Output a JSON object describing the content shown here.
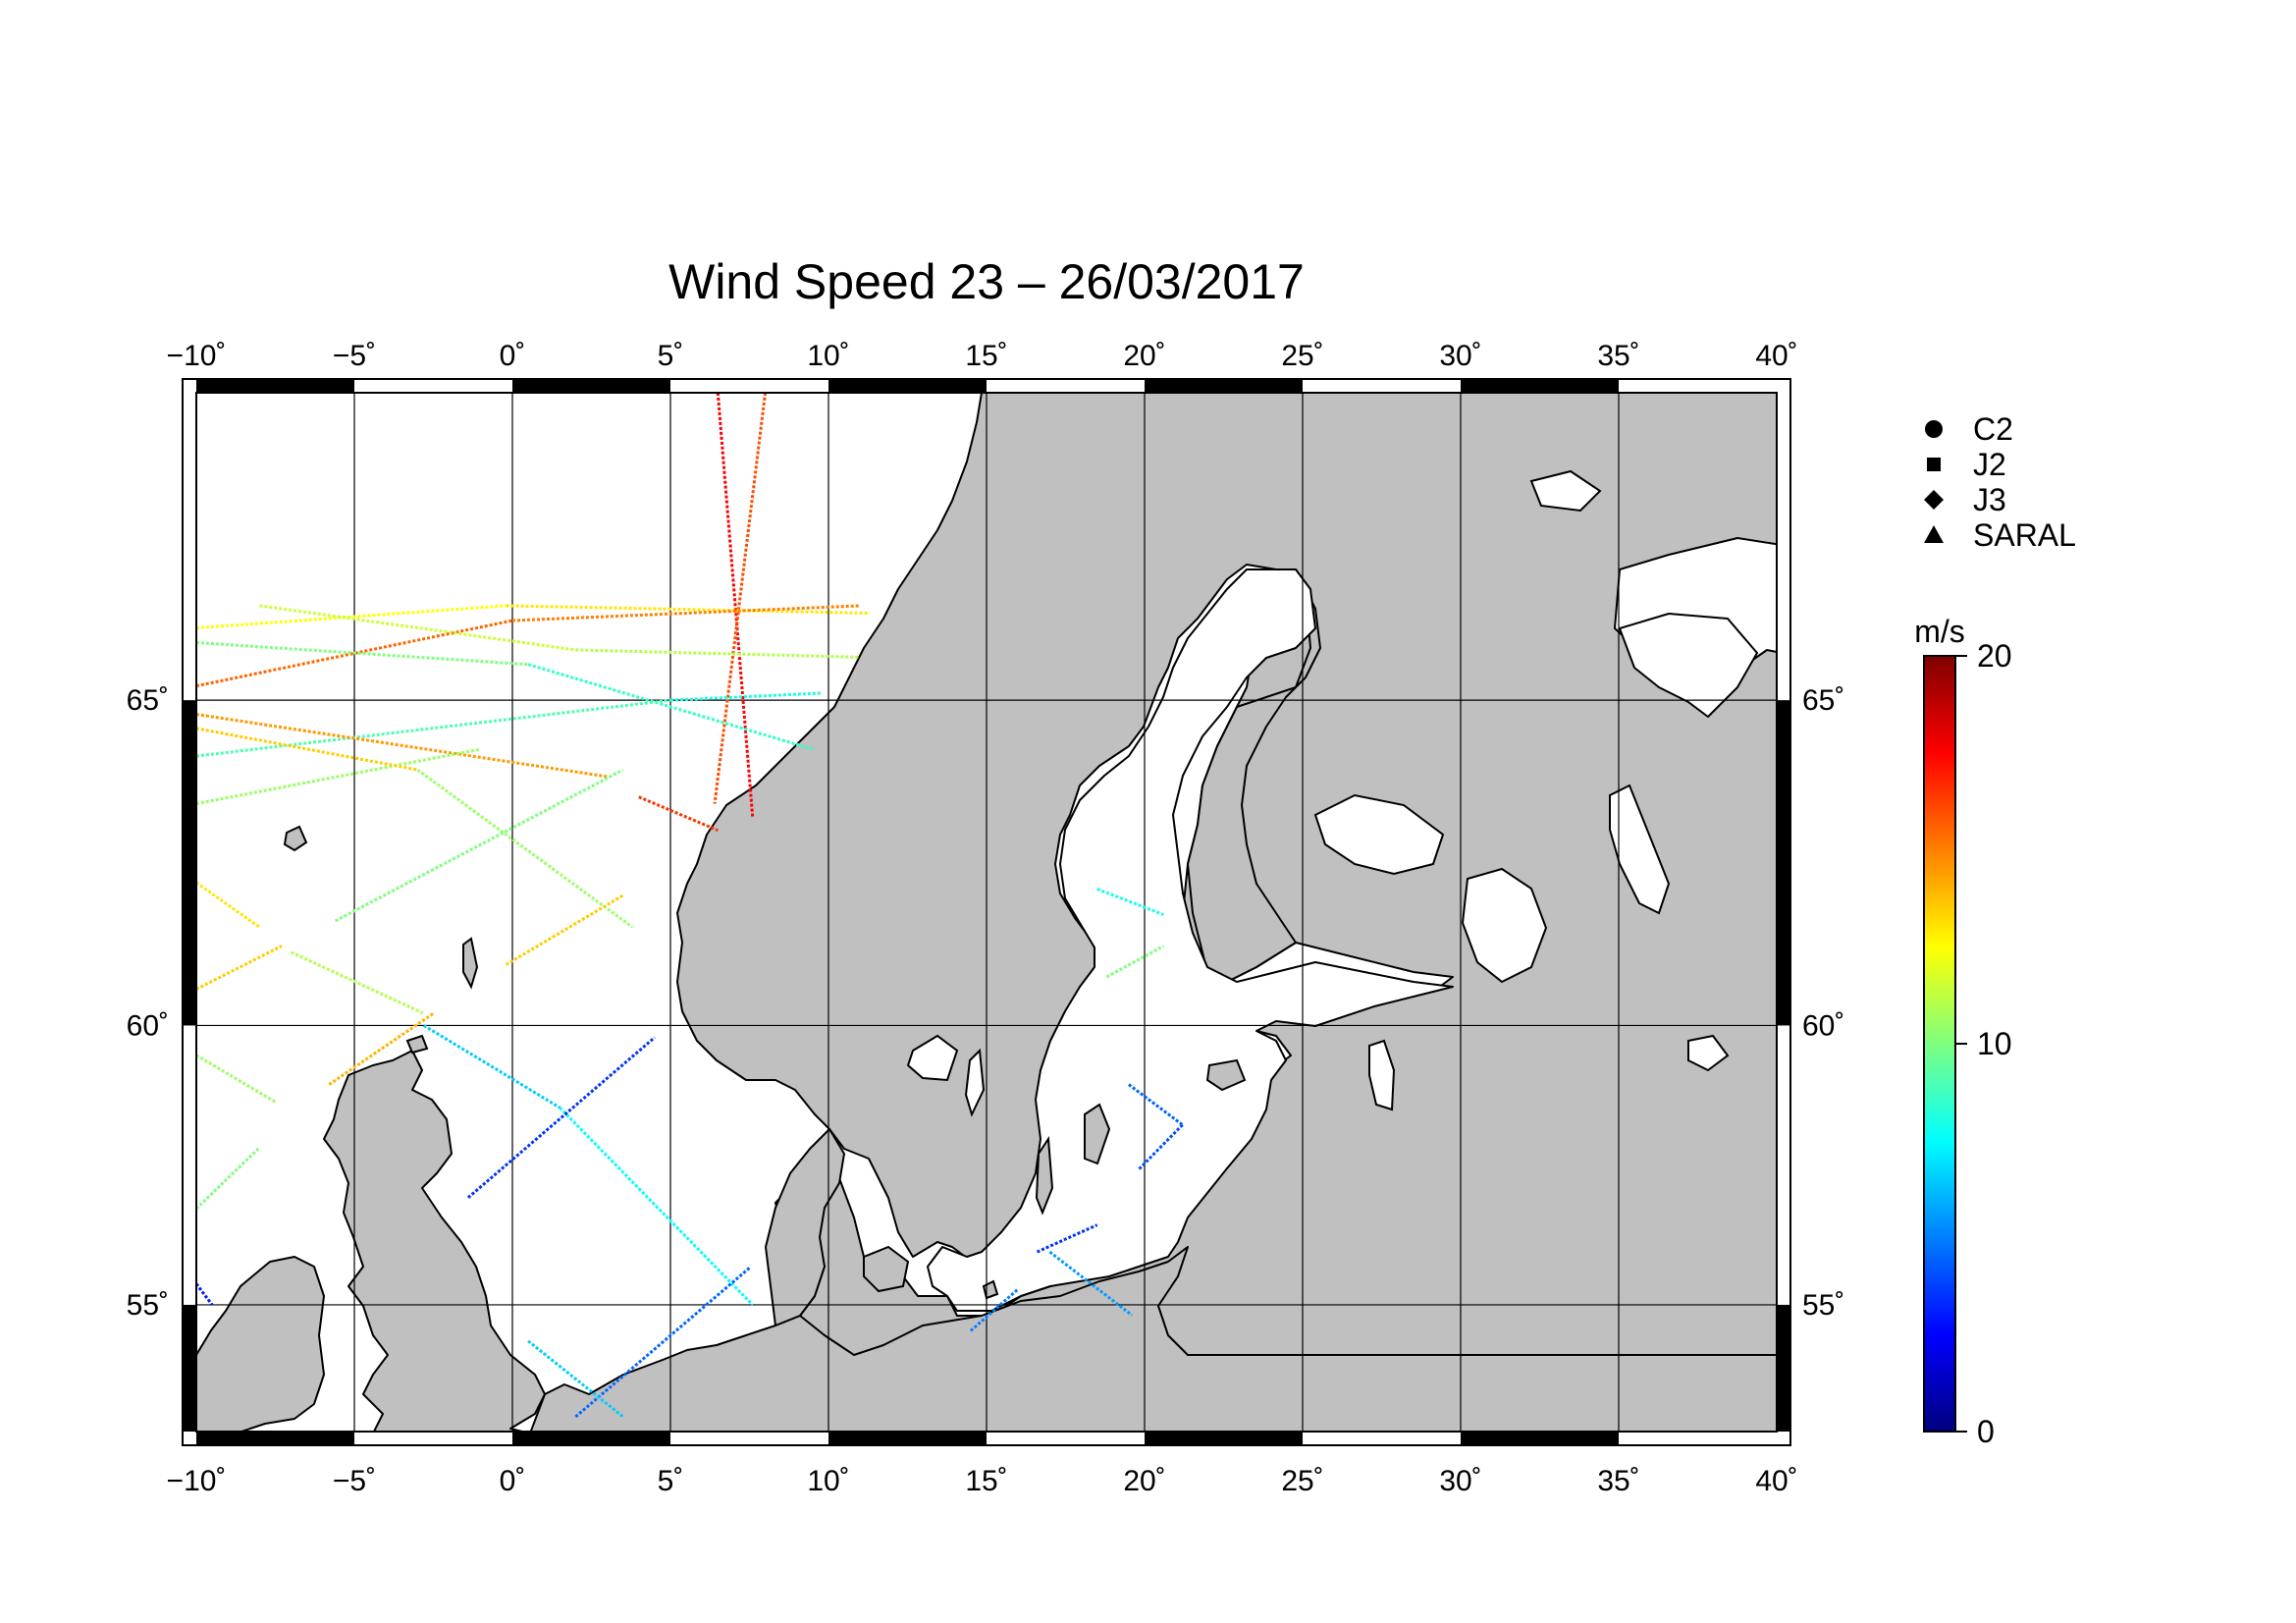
{
  "title": "Wind Speed 23 – 26/03/2017",
  "map": {
    "lon_ticks": [
      {
        "value": -10,
        "label": "−10˚"
      },
      {
        "value": -5,
        "label": "−5˚"
      },
      {
        "value": 0,
        "label": "0˚"
      },
      {
        "value": 5,
        "label": "5˚"
      },
      {
        "value": 10,
        "label": "10˚"
      },
      {
        "value": 15,
        "label": "15˚"
      },
      {
        "value": 20,
        "label": "20˚"
      },
      {
        "value": 25,
        "label": "25˚"
      },
      {
        "value": 30,
        "label": "30˚"
      },
      {
        "value": 35,
        "label": "35˚"
      },
      {
        "value": 40,
        "label": "40˚"
      }
    ],
    "lat_ticks": [
      {
        "value": 55,
        "label": "55˚"
      },
      {
        "value": 60,
        "label": "60˚"
      },
      {
        "value": 65,
        "label": "65˚"
      }
    ],
    "lon_range": [
      -10,
      40
    ],
    "lat_range": [
      52.5,
      69
    ],
    "land_color": "#c0c0c0",
    "sea_color": "#ffffff",
    "grid": true
  },
  "legend": {
    "position": "right",
    "items": [
      {
        "symbol": "circle",
        "label": "C2"
      },
      {
        "symbol": "square",
        "label": "J2"
      },
      {
        "symbol": "diamond",
        "label": "J3"
      },
      {
        "symbol": "triangle",
        "label": "SARAL"
      }
    ]
  },
  "colorbar": {
    "unit": "m/s",
    "min": 0,
    "max": 20,
    "ticks": [
      {
        "value": 0,
        "label": "0"
      },
      {
        "value": 10,
        "label": "10"
      },
      {
        "value": 20,
        "label": "20"
      }
    ],
    "colormap": [
      "#00007f",
      "#0000ff",
      "#007fff",
      "#00ffff",
      "#7fff7f",
      "#ffff00",
      "#ff7f00",
      "#ff0000",
      "#7f0000"
    ]
  },
  "chart_data": {
    "type": "scatter",
    "tracks": [
      {
        "start": [
          6.5,
          69.0
        ],
        "end": [
          7.6,
          63.3
        ],
        "speed": 17.5
      },
      {
        "start": [
          8.0,
          69.0
        ],
        "end": [
          6.4,
          63.5
        ],
        "speed": 16.0
      },
      {
        "start": [
          -10.0,
          66.0
        ],
        "end": [
          -0.2,
          66.3
        ],
        "speed": 12.5
      },
      {
        "start": [
          -0.2,
          66.3
        ],
        "end": [
          11.3,
          66.2
        ],
        "speed": 13.0
      },
      {
        "start": [
          -10.0,
          65.2
        ],
        "end": [
          0.0,
          66.1
        ],
        "speed": 15.5
      },
      {
        "start": [
          0.0,
          66.1
        ],
        "end": [
          11.0,
          66.3
        ],
        "speed": 15.0
      },
      {
        "start": [
          -8.0,
          66.3
        ],
        "end": [
          2.0,
          65.7
        ],
        "speed": 11.5
      },
      {
        "start": [
          2.0,
          65.7
        ],
        "end": [
          11.0,
          65.6
        ],
        "speed": 11.0
      },
      {
        "start": [
          -10.0,
          65.8
        ],
        "end": [
          0.5,
          65.5
        ],
        "speed": 10.0
      },
      {
        "start": [
          0.5,
          65.5
        ],
        "end": [
          9.5,
          64.3
        ],
        "speed": 8.5
      },
      {
        "start": [
          -10.0,
          64.2
        ],
        "end": [
          5.0,
          65.0
        ],
        "speed": 9.0
      },
      {
        "start": [
          5.0,
          65.0
        ],
        "end": [
          9.8,
          65.1
        ],
        "speed": 8.0
      },
      {
        "start": [
          -10.0,
          64.8
        ],
        "end": [
          3.0,
          63.9
        ],
        "speed": 14.5
      },
      {
        "start": [
          4.0,
          63.6
        ],
        "end": [
          6.5,
          63.1
        ],
        "speed": 16.5
      },
      {
        "start": [
          -10.0,
          63.5
        ],
        "end": [
          -1.0,
          64.3
        ],
        "speed": 10.5
      },
      {
        "start": [
          -10.0,
          64.6
        ],
        "end": [
          -3.0,
          64.0
        ],
        "speed": 13.5
      },
      {
        "start": [
          -3.0,
          64.0
        ],
        "end": [
          3.8,
          61.6
        ],
        "speed": 10.5
      },
      {
        "start": [
          -10.0,
          62.3
        ],
        "end": [
          -8.0,
          61.6
        ],
        "speed": 13.0
      },
      {
        "start": [
          -10.0,
          60.6
        ],
        "end": [
          -7.3,
          61.3
        ],
        "speed": 13.5
      },
      {
        "start": [
          -5.6,
          61.7
        ],
        "end": [
          3.5,
          64.0
        ],
        "speed": 10.0
      },
      {
        "start": [
          -0.2,
          61.0
        ],
        "end": [
          3.5,
          62.1
        ],
        "speed": 13.5
      },
      {
        "start": [
          -7.0,
          61.2
        ],
        "end": [
          -2.8,
          60.2
        ],
        "speed": 11.0
      },
      {
        "start": [
          -5.8,
          59.0
        ],
        "end": [
          -2.5,
          60.2
        ],
        "speed": 14.0
      },
      {
        "start": [
          -10.0,
          59.5
        ],
        "end": [
          -7.5,
          58.7
        ],
        "speed": 10.5
      },
      {
        "start": [
          -10.0,
          56.8
        ],
        "end": [
          -8.0,
          57.9
        ],
        "speed": 10.0
      },
      {
        "start": [
          -2.8,
          60.0
        ],
        "end": [
          1.5,
          58.6
        ],
        "speed": 6.5
      },
      {
        "start": [
          1.5,
          58.6
        ],
        "end": [
          7.6,
          55.0
        ],
        "speed": 7.5
      },
      {
        "start": [
          -1.4,
          57.0
        ],
        "end": [
          4.5,
          59.8
        ],
        "speed": 3.5
      },
      {
        "start": [
          2.0,
          52.8
        ],
        "end": [
          7.5,
          55.7
        ],
        "speed": 4.5
      },
      {
        "start": [
          0.5,
          54.3
        ],
        "end": [
          3.5,
          52.8
        ],
        "speed": 6.5
      },
      {
        "start": [
          -10.0,
          55.4
        ],
        "end": [
          -9.5,
          55.0
        ],
        "speed": 3.0
      },
      {
        "start": [
          18.5,
          62.2
        ],
        "end": [
          20.6,
          61.8
        ],
        "speed": 8.0
      },
      {
        "start": [
          18.8,
          60.8
        ],
        "end": [
          20.6,
          61.3
        ],
        "speed": 10.0
      },
      {
        "start": [
          19.5,
          59.0
        ],
        "end": [
          21.2,
          58.3
        ],
        "speed": 4.5
      },
      {
        "start": [
          21.2,
          58.3
        ],
        "end": [
          19.8,
          57.5
        ],
        "speed": 4.0
      },
      {
        "start": [
          16.6,
          56.0
        ],
        "end": [
          18.5,
          56.5
        ],
        "speed": 3.5
      },
      {
        "start": [
          17.0,
          56.0
        ],
        "end": [
          19.6,
          54.8
        ],
        "speed": 5.5
      },
      {
        "start": [
          14.5,
          54.5
        ],
        "end": [
          16.0,
          55.3
        ],
        "speed": 5.0
      }
    ]
  }
}
